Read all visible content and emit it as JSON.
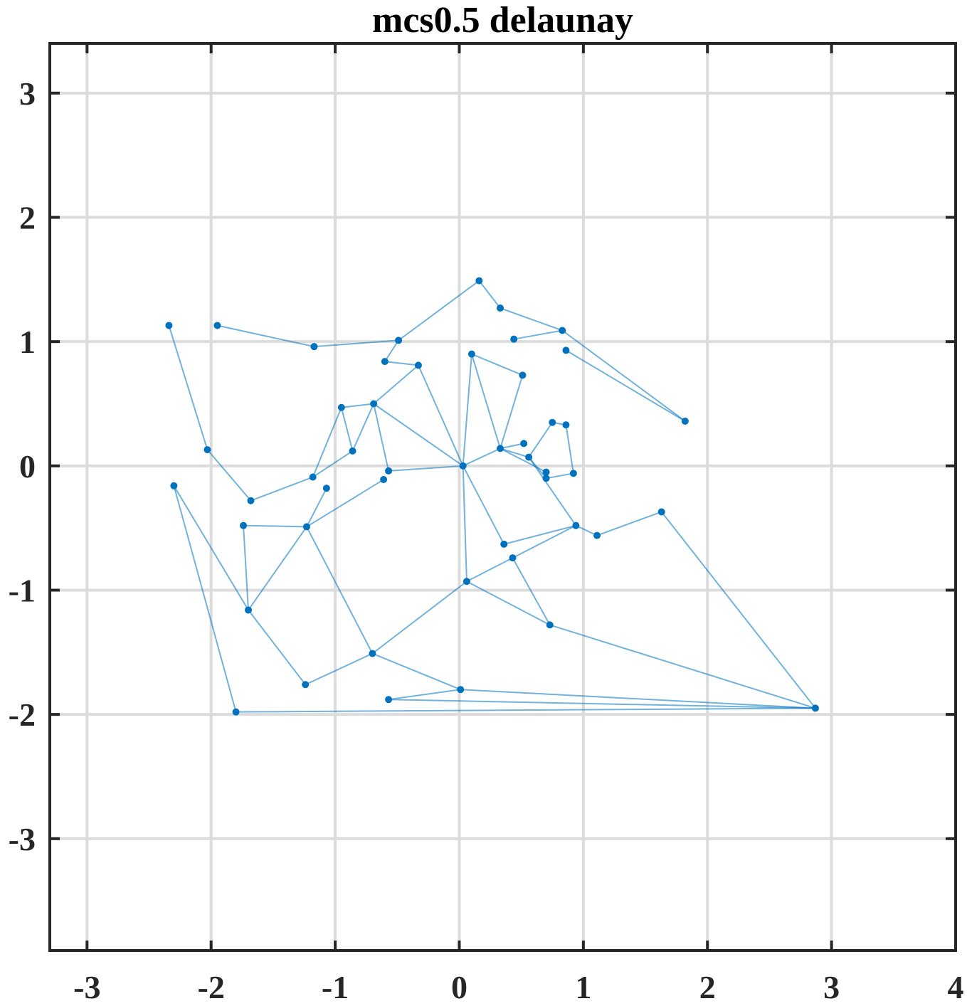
{
  "chart_data": {
    "type": "scatter",
    "title": "mcs0.5 delaunay",
    "xlabel": "",
    "ylabel": "",
    "xlim": [
      -3.3,
      4
    ],
    "ylim": [
      -3.9,
      3.4
    ],
    "xticks": [
      -3,
      -2,
      -1,
      0,
      1,
      2,
      3,
      4
    ],
    "yticks": [
      -3,
      -2,
      -1,
      0,
      1,
      2,
      3
    ],
    "xtick_labels": [
      "-3",
      "-2",
      "-1",
      "0",
      "1",
      "2",
      "3",
      "4"
    ],
    "ytick_labels": [
      "-3",
      "-2",
      "-1",
      "0",
      "1",
      "2",
      "3"
    ],
    "grid": true,
    "color": "#0072BD",
    "points": [
      [
        -2.34,
        1.13
      ],
      [
        -1.95,
        1.13
      ],
      [
        -1.17,
        0.96
      ],
      [
        -0.49,
        1.01
      ],
      [
        0.16,
        1.49
      ],
      [
        0.33,
        1.27
      ],
      [
        0.83,
        1.09
      ],
      [
        0.44,
        1.02
      ],
      [
        0.86,
        0.93
      ],
      [
        1.82,
        0.36
      ],
      [
        -0.6,
        0.84
      ],
      [
        -0.33,
        0.81
      ],
      [
        0.1,
        0.9
      ],
      [
        0.51,
        0.73
      ],
      [
        -0.95,
        0.47
      ],
      [
        -0.69,
        0.5
      ],
      [
        -0.86,
        0.12
      ],
      [
        -2.03,
        0.13
      ],
      [
        -1.68,
        -0.28
      ],
      [
        -1.18,
        -0.09
      ],
      [
        -1.07,
        -0.18
      ],
      [
        -0.57,
        -0.04
      ],
      [
        -0.61,
        -0.11
      ],
      [
        0.03,
        0.0
      ],
      [
        0.33,
        0.14
      ],
      [
        0.52,
        0.18
      ],
      [
        0.56,
        0.07
      ],
      [
        0.75,
        0.35
      ],
      [
        0.86,
        0.33
      ],
      [
        0.7,
        -0.05
      ],
      [
        0.7,
        -0.1
      ],
      [
        0.92,
        -0.06
      ],
      [
        0.94,
        -0.48
      ],
      [
        1.11,
        -0.56
      ],
      [
        1.63,
        -0.37
      ],
      [
        0.36,
        -0.63
      ],
      [
        0.43,
        -0.74
      ],
      [
        0.06,
        -0.93
      ],
      [
        0.73,
        -1.28
      ],
      [
        -2.3,
        -0.16
      ],
      [
        -1.74,
        -0.48
      ],
      [
        -1.23,
        -0.49
      ],
      [
        -1.7,
        -1.16
      ],
      [
        -0.7,
        -1.51
      ],
      [
        -1.24,
        -1.76
      ],
      [
        -1.8,
        -1.98
      ],
      [
        0.01,
        -1.8
      ],
      [
        -0.57,
        -1.88
      ],
      [
        2.87,
        -1.95
      ]
    ],
    "edges": [
      [
        0,
        17
      ],
      [
        17,
        18
      ],
      [
        18,
        19
      ],
      [
        19,
        16
      ],
      [
        19,
        14
      ],
      [
        14,
        16
      ],
      [
        14,
        15
      ],
      [
        16,
        15
      ],
      [
        15,
        21
      ],
      [
        15,
        23
      ],
      [
        15,
        11
      ],
      [
        11,
        10
      ],
      [
        10,
        3
      ],
      [
        11,
        23
      ],
      [
        1,
        2
      ],
      [
        2,
        3
      ],
      [
        3,
        4
      ],
      [
        4,
        5
      ],
      [
        5,
        6
      ],
      [
        6,
        9
      ],
      [
        9,
        8
      ],
      [
        7,
        6
      ],
      [
        23,
        12
      ],
      [
        12,
        13
      ],
      [
        13,
        24
      ],
      [
        12,
        24
      ],
      [
        23,
        24
      ],
      [
        24,
        25
      ],
      [
        24,
        26
      ],
      [
        24,
        29
      ],
      [
        26,
        27
      ],
      [
        27,
        28
      ],
      [
        28,
        31
      ],
      [
        26,
        30
      ],
      [
        30,
        31
      ],
      [
        26,
        32
      ],
      [
        32,
        33
      ],
      [
        33,
        34
      ],
      [
        34,
        48
      ],
      [
        32,
        35
      ],
      [
        35,
        23
      ],
      [
        32,
        36
      ],
      [
        36,
        37
      ],
      [
        36,
        38
      ],
      [
        23,
        37
      ],
      [
        37,
        38
      ],
      [
        37,
        43
      ],
      [
        38,
        48
      ],
      [
        21,
        23
      ],
      [
        22,
        41
      ],
      [
        20,
        41
      ],
      [
        41,
        40
      ],
      [
        40,
        42
      ],
      [
        41,
        42
      ],
      [
        41,
        43
      ],
      [
        43,
        44
      ],
      [
        42,
        44
      ],
      [
        39,
        42
      ],
      [
        39,
        45
      ],
      [
        45,
        48
      ],
      [
        43,
        46
      ],
      [
        46,
        48
      ],
      [
        47,
        48
      ],
      [
        47,
        46
      ]
    ]
  }
}
